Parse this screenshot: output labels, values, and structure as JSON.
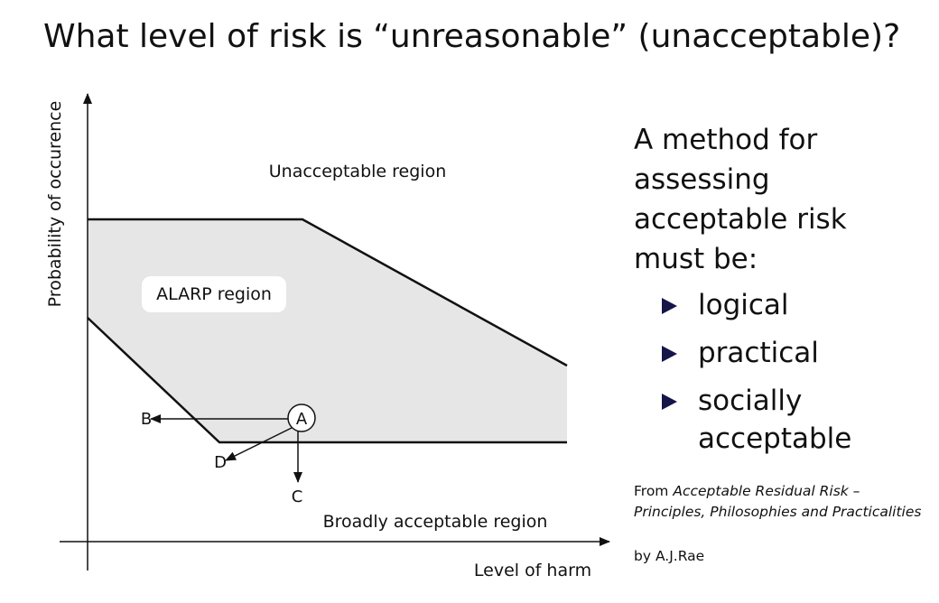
{
  "title": "What level of risk is “unreasonable” (unacceptable)?",
  "diagram": {
    "y_axis_label": "Probability of occurence",
    "x_axis_label": "Level of harm",
    "region_unacceptable": "Unacceptable region",
    "region_alarp": "ALARP region",
    "region_broadly": "Broadly acceptable region",
    "point_a": "A",
    "point_b": "B",
    "point_c": "C",
    "point_d": "D",
    "alarp_fill": "#e6e6e6"
  },
  "side": {
    "intro": "A method for assessing acceptable risk must be:",
    "bullets": [
      "logical",
      "practical",
      "socially acceptable"
    ],
    "bullet_color": "#15154a",
    "source_prefix": "From",
    "source_title": "Acceptable Residual Risk – Principles, Philosophies and Practicalities",
    "author": "by A.J.Rae"
  }
}
